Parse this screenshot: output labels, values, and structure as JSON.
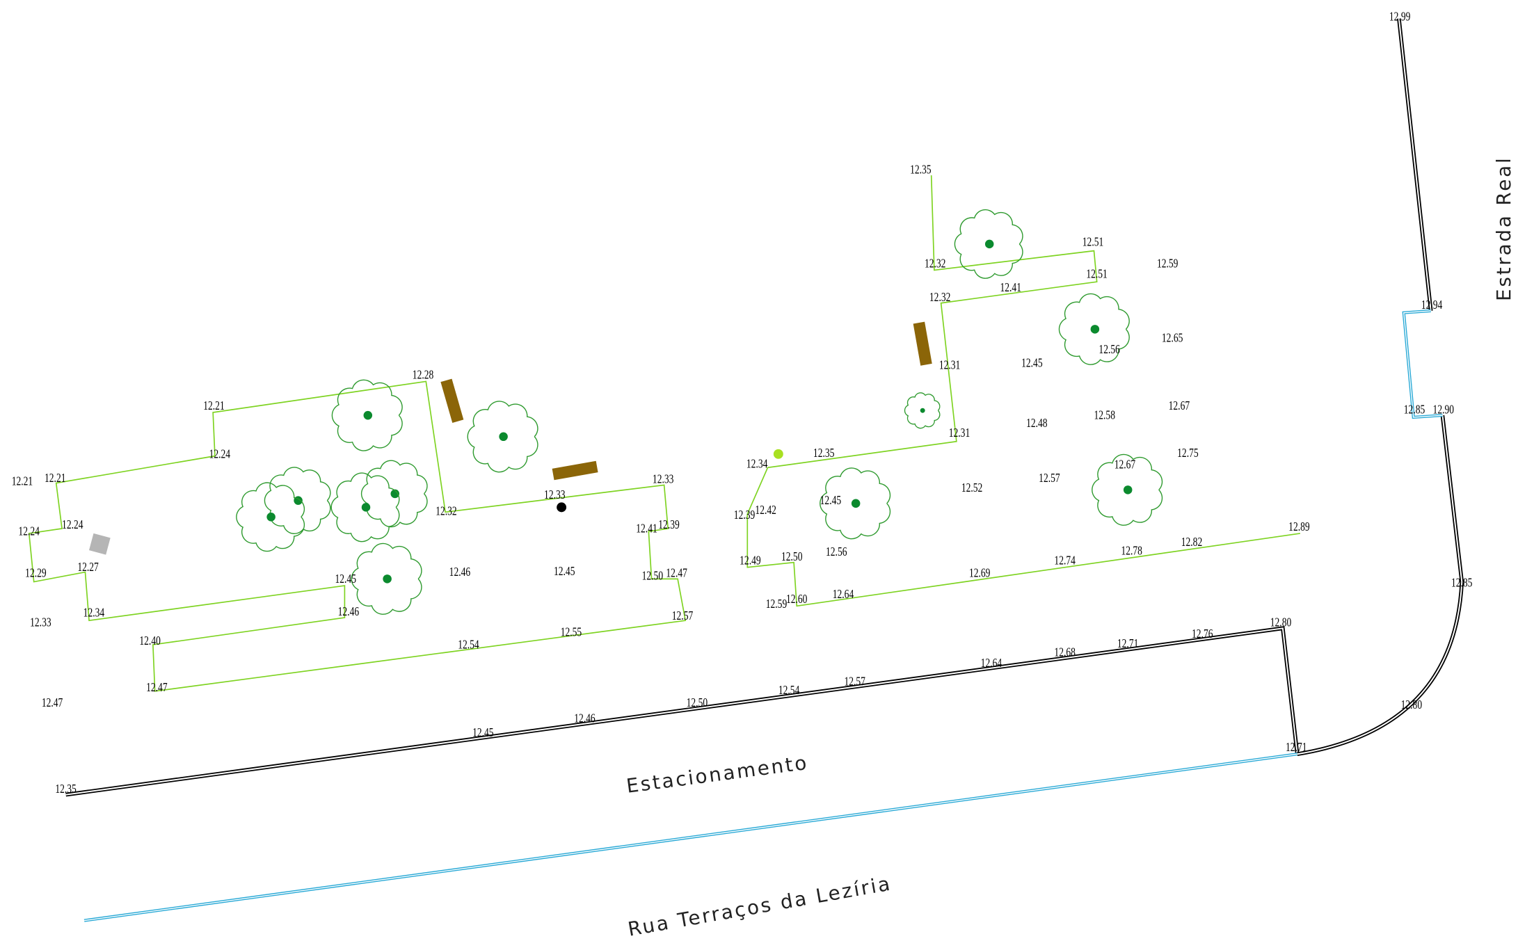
{
  "spot_heights": [
    "12.99",
    "12.35",
    "12.51",
    "12.32",
    "12.59",
    "12.51",
    "12.41",
    "12.32",
    "12.94",
    "12.56",
    "12.65",
    "12.31",
    "12.45",
    "12.28",
    "12.67",
    "12.21",
    "12.85",
    "12.90",
    "12.58",
    "12.48",
    "12.31",
    "12.35",
    "12.24",
    "12.75",
    "12.34",
    "12.67",
    "12.21",
    "12.21",
    "12.33",
    "12.57",
    "12.52",
    "12.33",
    "12.45",
    "12.32",
    "12.39",
    "12.42",
    "12.24",
    "12.24",
    "12.41",
    "12.39",
    "12.89",
    "12.82",
    "12.78",
    "12.56",
    "12.74",
    "12.50",
    "12.49",
    "12.27",
    "12.46",
    "12.45",
    "12.69",
    "12.29",
    "12.50",
    "12.47",
    "12.45",
    "12.64",
    "12.59",
    "12.60",
    "12.34",
    "12.46",
    "12.57",
    "12.80",
    "12.33",
    "12.76",
    "12.55",
    "12.40",
    "12.71",
    "12.54",
    "12.68",
    "12.64",
    "12.85",
    "12.57",
    "12.47",
    "12.54",
    "12.47",
    "12.50",
    "12.80",
    "12.46",
    "12.45",
    "12.71",
    "12.35"
  ],
  "labels": {
    "parking": "Estacionamento",
    "street": "Rua Terraços da Lezíria",
    "road": "Estrada Real"
  }
}
